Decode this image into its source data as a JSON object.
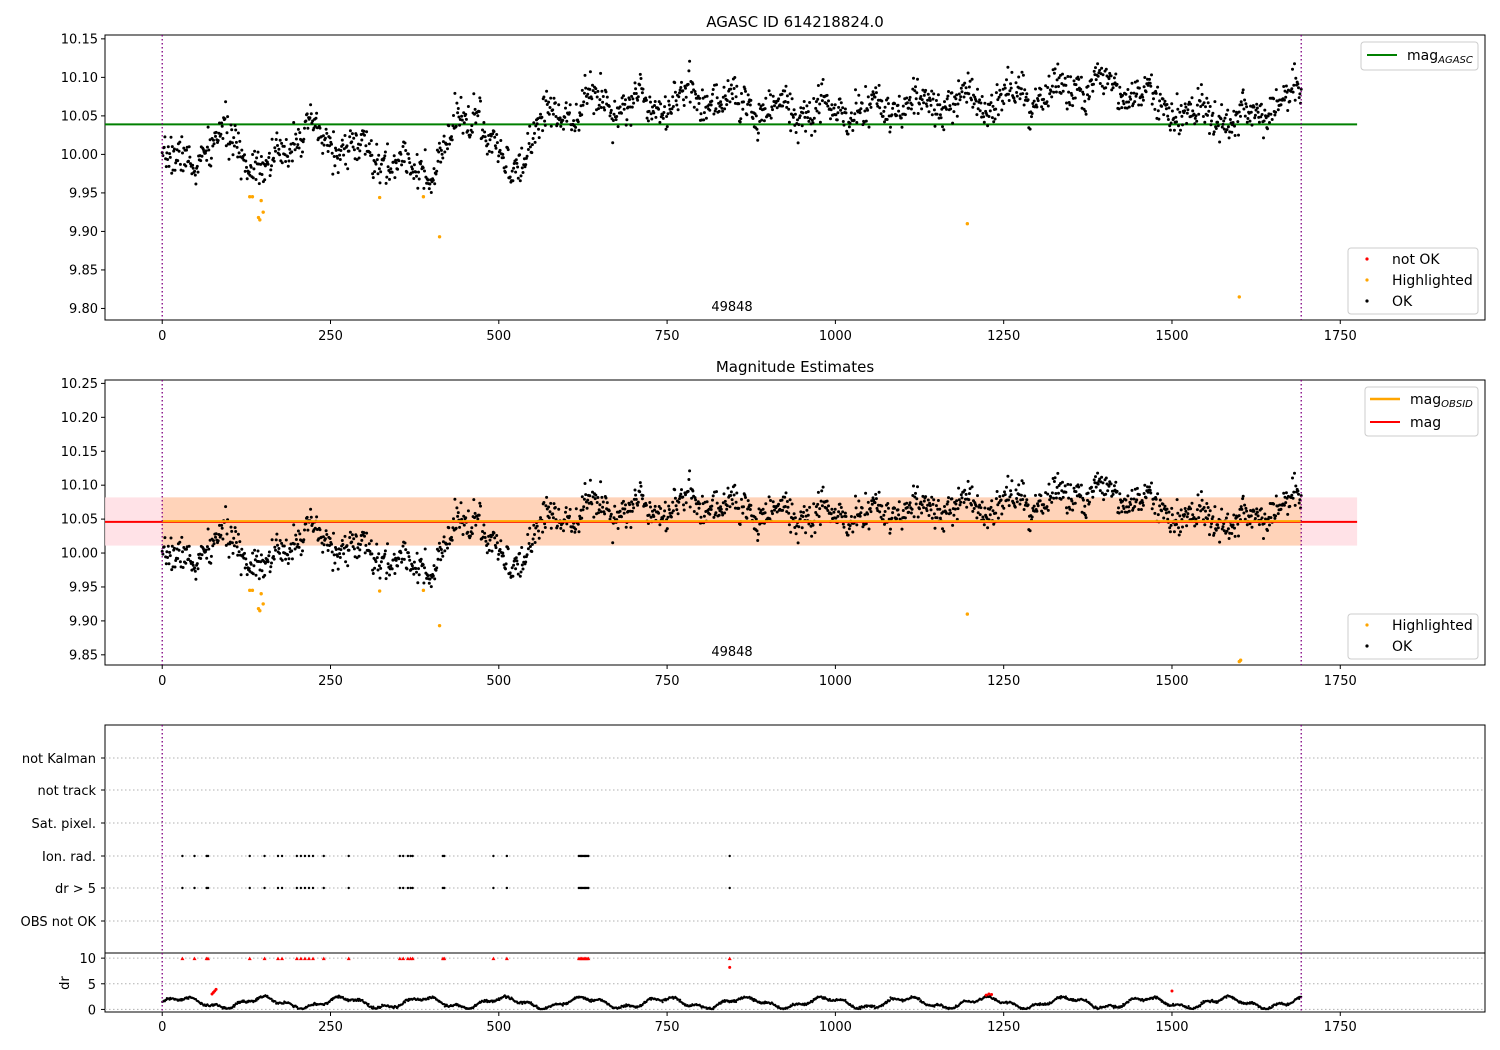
{
  "chart_data": [
    {
      "type": "scatter",
      "title": "AGASC ID 614218824.0",
      "obsid_label": "49848",
      "xlim": [
        -85,
        1965
      ],
      "ylim": [
        9.785,
        10.155
      ],
      "xticks": [
        0,
        250,
        500,
        750,
        1000,
        1250,
        1500,
        1750
      ],
      "yticks": [
        9.8,
        9.85,
        9.9,
        9.95,
        10.0,
        10.05,
        10.1,
        10.15
      ],
      "xtick_labels": [
        "0",
        "250",
        "500",
        "750",
        "1000",
        "1250",
        "1500",
        "1750"
      ],
      "ytick_labels": [
        "9.80",
        "9.85",
        "9.90",
        "9.95",
        "10.00",
        "10.05",
        "10.10",
        "10.15"
      ],
      "vlines": [
        0,
        1692
      ],
      "hline": {
        "name_main": "mag",
        "name_sub": "AGASC",
        "value": 10.039,
        "x_range": [
          -85,
          1775
        ],
        "color": "#008000"
      },
      "legend_line_position": "top-right",
      "legend_points_position": "lower-right",
      "legend_points": [
        {
          "name": "not OK",
          "color": "#ff0000"
        },
        {
          "name": "Highlighted",
          "color": "#ffa500"
        },
        {
          "name": "OK",
          "color": "#000000"
        }
      ],
      "highlighted": [
        [
          130,
          9.945
        ],
        [
          134,
          9.945
        ],
        [
          143,
          9.918
        ],
        [
          145,
          9.915
        ],
        [
          147,
          9.94
        ],
        [
          150,
          9.925
        ],
        [
          323,
          9.944
        ],
        [
          388,
          9.945
        ],
        [
          412,
          9.893
        ],
        [
          1196,
          9.91
        ],
        [
          1600,
          9.815
        ]
      ],
      "ok_model": {
        "n": 1690,
        "x_max": 1692,
        "noise": 0.012,
        "seed": 7,
        "baseline": [
          [
            0,
            9.985
          ],
          [
            60,
            10.0
          ],
          [
            100,
            10.025
          ],
          [
            150,
            9.975
          ],
          [
            200,
            10.03
          ],
          [
            270,
            10.01
          ],
          [
            320,
            9.995
          ],
          [
            360,
            9.985
          ],
          [
            400,
            9.975
          ],
          [
            450,
            10.05
          ],
          [
            470,
            10.06
          ],
          [
            490,
            10.0
          ],
          [
            520,
            9.975
          ],
          [
            560,
            10.04
          ],
          [
            600,
            10.06
          ],
          [
            650,
            10.07
          ],
          [
            700,
            10.065
          ],
          [
            800,
            10.075
          ],
          [
            900,
            10.06
          ],
          [
            1000,
            10.055
          ],
          [
            1100,
            10.06
          ],
          [
            1200,
            10.07
          ],
          [
            1300,
            10.075
          ],
          [
            1400,
            10.095
          ],
          [
            1500,
            10.06
          ],
          [
            1600,
            10.045
          ],
          [
            1650,
            10.065
          ],
          [
            1692,
            10.075
          ]
        ]
      }
    },
    {
      "type": "scatter",
      "title": "Magnitude Estimates",
      "obsid_label": "49848",
      "xlim": [
        -85,
        1965
      ],
      "ylim": [
        9.835,
        10.255
      ],
      "xticks": [
        0,
        250,
        500,
        750,
        1000,
        1250,
        1500,
        1750
      ],
      "yticks": [
        9.85,
        9.9,
        9.95,
        10.0,
        10.05,
        10.1,
        10.15,
        10.2,
        10.25
      ],
      "xtick_labels": [
        "0",
        "250",
        "500",
        "750",
        "1000",
        "1250",
        "1500",
        "1750"
      ],
      "ytick_labels": [
        "9.85",
        "9.90",
        "9.95",
        "10.00",
        "10.05",
        "10.10",
        "10.15",
        "10.20",
        "10.25"
      ],
      "vlines": [
        0,
        1692
      ],
      "lines": [
        {
          "name_main": "mag",
          "name_sub": "OBSID",
          "value": 10.047,
          "x_range": [
            0,
            1692
          ],
          "color": "#ffa500",
          "band": [
            10.011,
            10.082
          ],
          "band_color": "#ffd0b0"
        },
        {
          "name_main": "mag",
          "name_sub": "",
          "value": 10.046,
          "x_range": [
            -85,
            1775
          ],
          "color": "#ff0000",
          "band": [
            10.011,
            10.082
          ],
          "band_color": "#ffdde3"
        }
      ],
      "legend_line_position": "top-right",
      "legend_points_position": "lower-right",
      "legend_points": [
        {
          "name": "Highlighted",
          "color": "#ffa500"
        },
        {
          "name": "OK",
          "color": "#000000"
        }
      ],
      "highlighted": [
        [
          130,
          9.945
        ],
        [
          134,
          9.945
        ],
        [
          143,
          9.918
        ],
        [
          145,
          9.915
        ],
        [
          147,
          9.94
        ],
        [
          150,
          9.925
        ],
        [
          323,
          9.944
        ],
        [
          388,
          9.945
        ],
        [
          412,
          9.893
        ],
        [
          1196,
          9.91
        ],
        [
          1600,
          9.84
        ],
        [
          1602,
          9.842
        ]
      ]
    },
    {
      "type": "scatter",
      "title": "",
      "xlim": [
        -85,
        1965
      ],
      "xticks": [
        0,
        250,
        500,
        750,
        1000,
        1250,
        1500,
        1750
      ],
      "xtick_labels": [
        "0",
        "250",
        "500",
        "750",
        "1000",
        "1250",
        "1500",
        "1750"
      ],
      "vlines": [
        0,
        1692
      ],
      "flag_rows": [
        "not Kalman",
        "not track",
        "Sat. pixel.",
        "Ion. rad.",
        "dr > 5",
        "OBS not OK"
      ],
      "flag_events_x": [
        30,
        48,
        66,
        68,
        130,
        152,
        172,
        178,
        200,
        206,
        212,
        218,
        224,
        240,
        277,
        353,
        358,
        365,
        369,
        372,
        417,
        419,
        492,
        512,
        619,
        621,
        623,
        625,
        627,
        629,
        631,
        633,
        843
      ],
      "dr_axis": {
        "ylabel": "dr",
        "ylim": [
          -0.5,
          11
        ],
        "yticks": [
          0,
          5,
          10
        ],
        "ytick_labels": [
          "0",
          "5",
          "10"
        ]
      },
      "dr_red_points": [
        [
          74,
          3.0
        ],
        [
          76,
          3.3
        ],
        [
          78,
          3.6
        ],
        [
          80,
          3.9
        ],
        [
          843,
          8.2
        ],
        [
          1224,
          2.8
        ],
        [
          1228,
          3.0
        ],
        [
          1232,
          2.9
        ],
        [
          1500,
          3.6
        ]
      ]
    }
  ]
}
